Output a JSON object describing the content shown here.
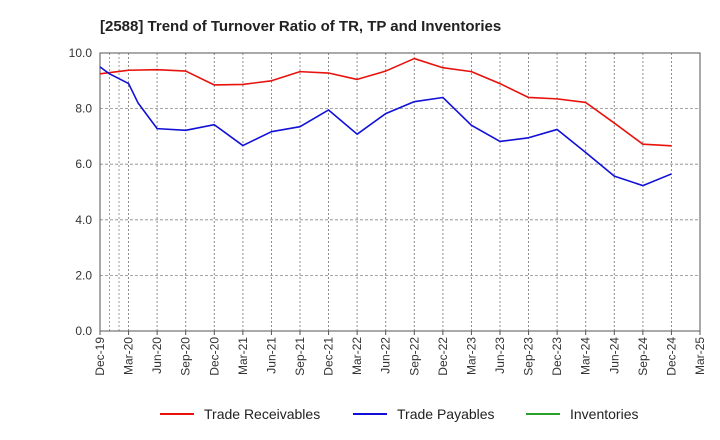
{
  "chart_data": {
    "type": "line",
    "title": "[2588]  Trend of Turnover Ratio of TR, TP and Inventories",
    "xlabel": "",
    "ylabel": "",
    "ylim": [
      0,
      10
    ],
    "yticks": [
      "0.0",
      "2.0",
      "4.0",
      "6.0",
      "8.0",
      "10.0"
    ],
    "xtick_labels": [
      "Dec-19",
      "Mar-20",
      "Jun-20",
      "Sep-20",
      "Dec-20",
      "Mar-21",
      "Jun-21",
      "Sep-21",
      "Dec-21",
      "Mar-22",
      "Jun-22",
      "Sep-22",
      "Dec-22",
      "Mar-23",
      "Jun-23",
      "Sep-23",
      "Dec-23",
      "Mar-24",
      "Jun-24",
      "Sep-24",
      "Dec-24",
      "Mar-25"
    ],
    "x_months": [
      "Dec-19",
      "Jan-20",
      "Feb-20",
      "Mar-20",
      "Jun-20",
      "Sep-20",
      "Dec-20",
      "Mar-21",
      "Jun-21",
      "Sep-21",
      "Dec-21",
      "Mar-22",
      "Jun-22",
      "Sep-22",
      "Dec-22",
      "Mar-23",
      "Jun-23",
      "Sep-23",
      "Dec-23",
      "Mar-24",
      "Jun-24",
      "Sep-24",
      "Dec-24"
    ],
    "grid": true,
    "legend_position": "bottom",
    "series": [
      {
        "name": "Trade Receivables",
        "color": "#e8120c",
        "points": [
          [
            "Dec-19",
            9.25
          ],
          [
            "Mar-20",
            9.38
          ],
          [
            "Jun-20",
            9.4
          ],
          [
            "Sep-20",
            9.35
          ],
          [
            "Dec-20",
            8.85
          ],
          [
            "Mar-21",
            8.87
          ],
          [
            "Jun-21",
            9.0
          ],
          [
            "Sep-21",
            9.33
          ],
          [
            "Dec-21",
            9.28
          ],
          [
            "Mar-22",
            9.05
          ],
          [
            "Jun-22",
            9.35
          ],
          [
            "Sep-22",
            9.8
          ],
          [
            "Dec-22",
            9.47
          ],
          [
            "Mar-23",
            9.33
          ],
          [
            "Jun-23",
            8.9
          ],
          [
            "Sep-23",
            8.4
          ],
          [
            "Dec-23",
            8.35
          ],
          [
            "Mar-24",
            8.22
          ],
          [
            "Jun-24",
            7.48
          ],
          [
            "Sep-24",
            6.72
          ],
          [
            "Dec-24",
            6.66
          ]
        ]
      },
      {
        "name": "Trade Payables",
        "color": "#1010d8",
        "points": [
          [
            "Dec-19",
            9.5
          ],
          [
            "Jan-20",
            9.25
          ],
          [
            "Mar-20",
            8.9
          ],
          [
            "Apr-20",
            8.2
          ],
          [
            "Jun-20",
            7.28
          ],
          [
            "Sep-20",
            7.22
          ],
          [
            "Dec-20",
            7.42
          ],
          [
            "Mar-21",
            6.67
          ],
          [
            "Jun-21",
            7.17
          ],
          [
            "Sep-21",
            7.35
          ],
          [
            "Dec-21",
            7.95
          ],
          [
            "Mar-22",
            7.08
          ],
          [
            "Jun-22",
            7.82
          ],
          [
            "Sep-22",
            8.25
          ],
          [
            "Dec-22",
            8.4
          ],
          [
            "Mar-23",
            7.4
          ],
          [
            "Jun-23",
            6.82
          ],
          [
            "Sep-23",
            6.95
          ],
          [
            "Dec-23",
            7.25
          ],
          [
            "Mar-24",
            6.42
          ],
          [
            "Jun-24",
            5.57
          ],
          [
            "Sep-24",
            5.23
          ],
          [
            "Dec-24",
            5.65
          ]
        ]
      },
      {
        "name": "Inventories",
        "color": "#2ca02c",
        "points": []
      }
    ]
  }
}
